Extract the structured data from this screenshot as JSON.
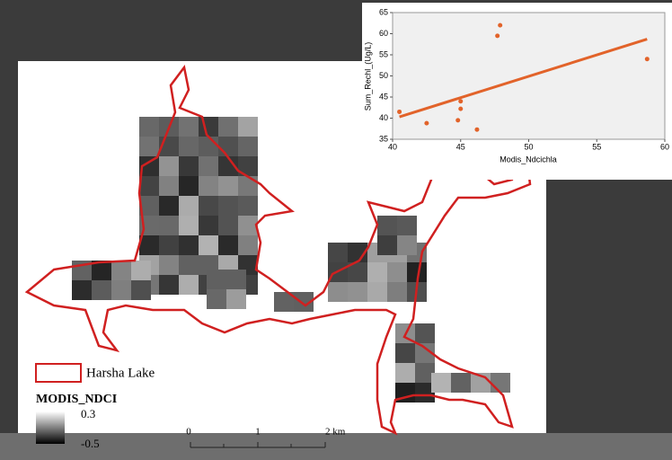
{
  "legend": {
    "outline": "Harsha Lake",
    "raster_title": "MODIS_NDCI",
    "max": "0.3",
    "min": "-0.5"
  },
  "scale_bar": {
    "ticks": [
      "0",
      "1",
      "2 km"
    ]
  },
  "chart_data": {
    "type": "scatter",
    "xlabel": "Modis_Ndcichla",
    "ylabel": "Sum_Rechl_(Ug/L)",
    "x": [
      40.5,
      42.5,
      44.8,
      45,
      45,
      46.2,
      47.7,
      47.9,
      58.7
    ],
    "series": [
      {
        "color": "#e2632a",
        "values": [
          41.5,
          38.8,
          39.5,
          42.2,
          44,
          37.3,
          59.5,
          62,
          54
        ]
      }
    ],
    "trendline": {
      "color": "#e2632a",
      "x": [
        40.5,
        58.7
      ],
      "y": [
        40.3,
        58.7
      ]
    },
    "xlim": [
      40,
      60
    ],
    "xticks": [
      40,
      45,
      50,
      55,
      60
    ],
    "ylim": [
      35,
      65
    ],
    "yticks": [
      35,
      40,
      45,
      50,
      55,
      60,
      65
    ]
  }
}
